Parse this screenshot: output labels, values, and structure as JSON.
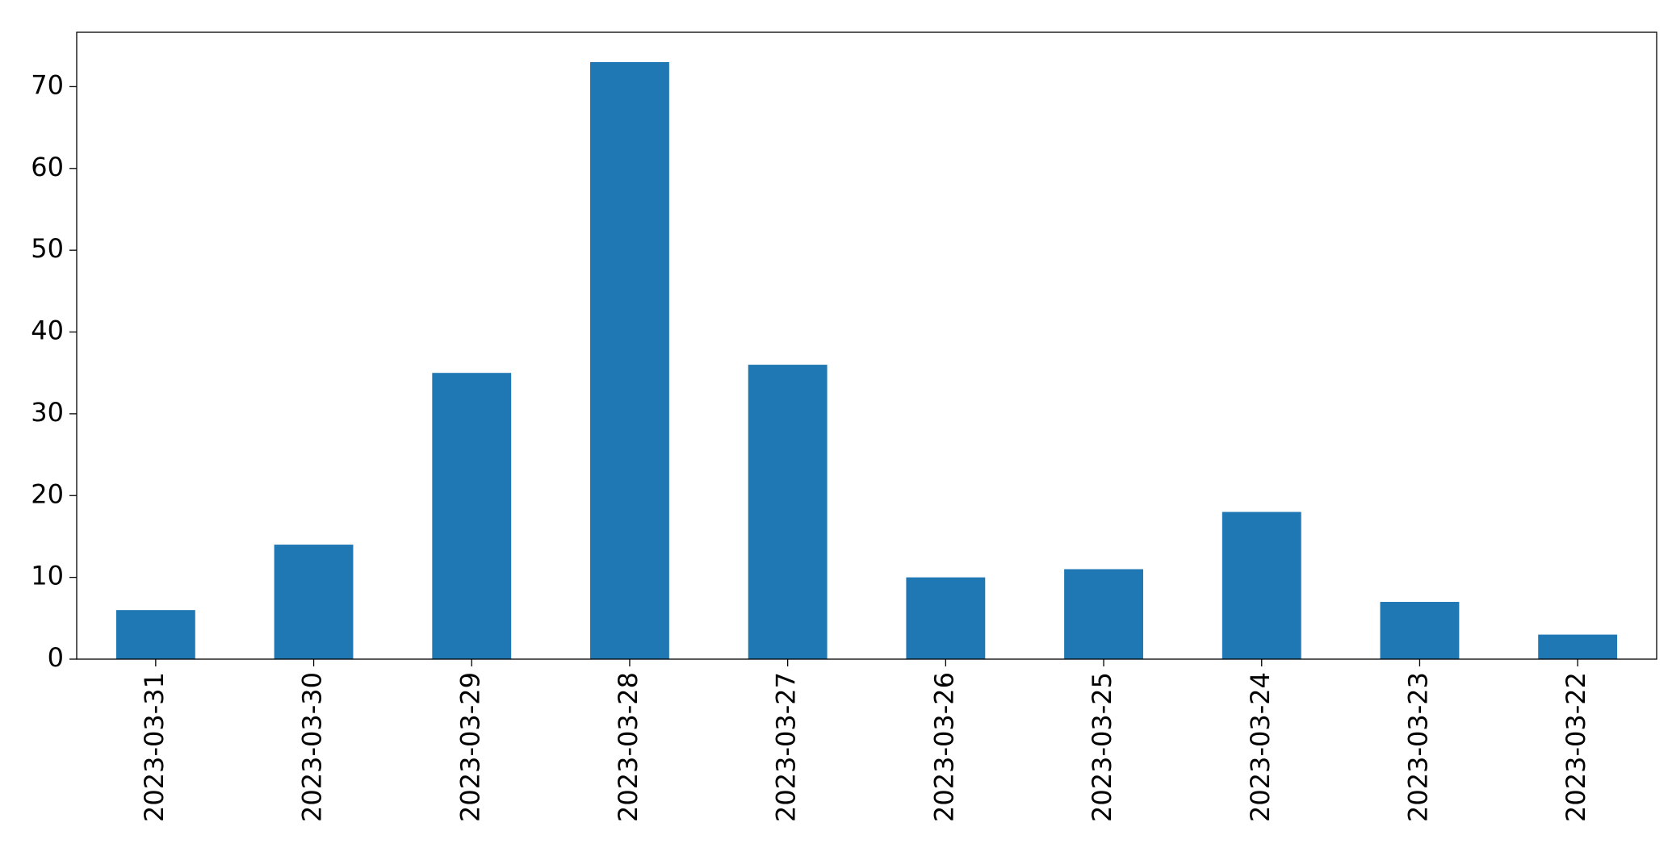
{
  "chart_data": {
    "type": "bar",
    "categories": [
      "2023-03-31",
      "2023-03-30",
      "2023-03-29",
      "2023-03-28",
      "2023-03-27",
      "2023-03-26",
      "2023-03-25",
      "2023-03-24",
      "2023-03-23",
      "2023-03-22"
    ],
    "values": [
      6,
      14,
      35,
      73,
      36,
      10,
      11,
      18,
      7,
      3
    ],
    "color": "#1f77b4",
    "ylim": [
      0,
      76.65
    ],
    "yticks": [
      0,
      10,
      20,
      30,
      40,
      50,
      60,
      70
    ],
    "grid": false
  }
}
